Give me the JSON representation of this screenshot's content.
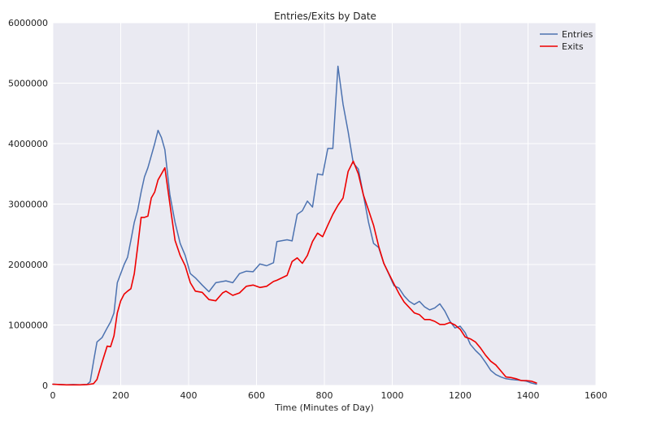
{
  "chart_data": {
    "type": "line",
    "title": "Entries/Exits by Date",
    "xlabel": "Time (Minutes of Day)",
    "ylabel": "",
    "xlim": [
      0,
      1600
    ],
    "ylim": [
      0,
      6000000
    ],
    "xticks": [
      0,
      200,
      400,
      600,
      800,
      1000,
      1200,
      1400,
      1600
    ],
    "yticks": [
      0,
      1000000,
      2000000,
      3000000,
      4000000,
      5000000,
      6000000
    ],
    "grid": true,
    "legend_position": "top-right",
    "series": [
      {
        "name": "Entries",
        "color": "#4c72b0",
        "x": [
          0,
          20,
          40,
          60,
          80,
          100,
          110,
          120,
          130,
          145,
          160,
          170,
          180,
          190,
          200,
          210,
          220,
          230,
          240,
          250,
          260,
          270,
          280,
          290,
          300,
          310,
          320,
          330,
          345,
          360,
          375,
          390,
          405,
          420,
          440,
          460,
          480,
          500,
          510,
          530,
          550,
          570,
          590,
          610,
          630,
          650,
          660,
          690,
          705,
          720,
          735,
          750,
          765,
          780,
          795,
          810,
          825,
          840,
          855,
          870,
          885,
          900,
          915,
          930,
          945,
          960,
          975,
          990,
          1005,
          1020,
          1035,
          1050,
          1065,
          1080,
          1095,
          1110,
          1125,
          1140,
          1155,
          1170,
          1185,
          1200,
          1215,
          1230,
          1245,
          1260,
          1275,
          1290,
          1305,
          1320,
          1335,
          1350,
          1365,
          1380,
          1395,
          1410,
          1425
        ],
        "values": [
          20000,
          15000,
          10000,
          15000,
          10000,
          15000,
          60000,
          400000,
          720000,
          790000,
          950000,
          1050000,
          1200000,
          1700000,
          1850000,
          2000000,
          2120000,
          2400000,
          2700000,
          2900000,
          3200000,
          3450000,
          3600000,
          3800000,
          4000000,
          4220000,
          4100000,
          3900000,
          3150000,
          2700000,
          2350000,
          2150000,
          1850000,
          1780000,
          1660000,
          1550000,
          1700000,
          1720000,
          1730000,
          1700000,
          1850000,
          1890000,
          1880000,
          2010000,
          1980000,
          2030000,
          2380000,
          2410000,
          2390000,
          2830000,
          2890000,
          3050000,
          2950000,
          3500000,
          3480000,
          3920000,
          3920000,
          5280000,
          4650000,
          4200000,
          3680000,
          3580000,
          3150000,
          2700000,
          2350000,
          2280000,
          2020000,
          1840000,
          1650000,
          1610000,
          1480000,
          1390000,
          1340000,
          1390000,
          1300000,
          1250000,
          1280000,
          1350000,
          1230000,
          1060000,
          950000,
          980000,
          870000,
          680000,
          580000,
          500000,
          380000,
          250000,
          180000,
          140000,
          110000,
          100000,
          90000,
          85000,
          70000,
          40000,
          20000
        ]
      },
      {
        "name": "Exits",
        "color": "#ee0000",
        "x": [
          0,
          20,
          40,
          60,
          80,
          100,
          110,
          120,
          130,
          145,
          160,
          170,
          180,
          190,
          200,
          210,
          220,
          230,
          240,
          250,
          260,
          270,
          280,
          290,
          300,
          310,
          320,
          330,
          345,
          360,
          375,
          390,
          405,
          420,
          440,
          460,
          480,
          500,
          510,
          530,
          550,
          570,
          590,
          610,
          630,
          650,
          660,
          690,
          705,
          720,
          735,
          750,
          765,
          780,
          795,
          810,
          825,
          840,
          855,
          870,
          885,
          900,
          915,
          930,
          945,
          960,
          975,
          990,
          1005,
          1020,
          1035,
          1050,
          1065,
          1080,
          1095,
          1110,
          1125,
          1140,
          1155,
          1170,
          1185,
          1200,
          1215,
          1230,
          1245,
          1260,
          1275,
          1290,
          1305,
          1320,
          1335,
          1350,
          1365,
          1380,
          1395,
          1410,
          1425
        ],
        "values": [
          20000,
          15000,
          10000,
          10000,
          10000,
          15000,
          20000,
          30000,
          100000,
          380000,
          650000,
          640000,
          820000,
          1200000,
          1400000,
          1510000,
          1560000,
          1600000,
          1850000,
          2300000,
          2780000,
          2780000,
          2800000,
          3100000,
          3200000,
          3400000,
          3500000,
          3600000,
          3000000,
          2400000,
          2150000,
          1980000,
          1700000,
          1560000,
          1540000,
          1420000,
          1400000,
          1530000,
          1560000,
          1490000,
          1530000,
          1640000,
          1660000,
          1620000,
          1640000,
          1720000,
          1740000,
          1820000,
          2050000,
          2110000,
          2020000,
          2150000,
          2380000,
          2520000,
          2460000,
          2650000,
          2830000,
          2980000,
          3100000,
          3540000,
          3710000,
          3500000,
          3150000,
          2900000,
          2650000,
          2300000,
          2020000,
          1850000,
          1680000,
          1520000,
          1380000,
          1290000,
          1200000,
          1170000,
          1090000,
          1090000,
          1060000,
          1010000,
          1010000,
          1040000,
          1000000,
          930000,
          800000,
          770000,
          720000,
          620000,
          500000,
          400000,
          340000,
          240000,
          140000,
          130000,
          110000,
          80000,
          80000,
          70000,
          40000
        ]
      }
    ]
  }
}
